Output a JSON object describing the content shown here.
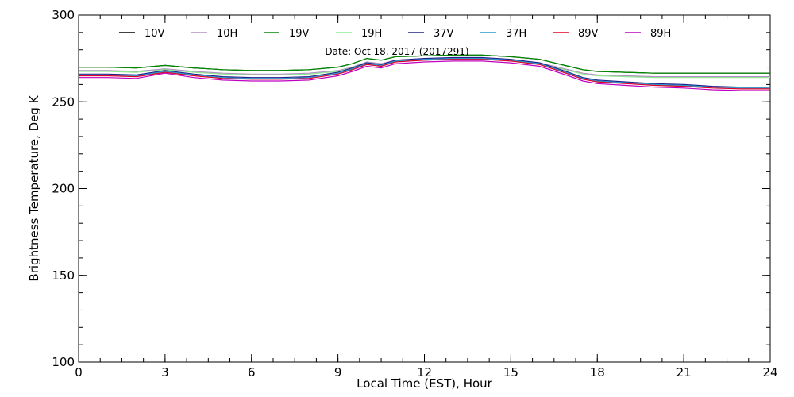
{
  "chart_data": {
    "type": "line",
    "title": "",
    "annotation": "Date: Oct 18, 2017 (2017291)",
    "xlabel": "Local Time (EST), Hour",
    "ylabel": "Brightness Temperature, Deg K",
    "xlim": [
      0,
      24
    ],
    "ylim": [
      100,
      300
    ],
    "xticks": [
      0,
      3,
      6,
      9,
      12,
      15,
      18,
      21,
      24
    ],
    "yticks": [
      100,
      150,
      200,
      250,
      300
    ],
    "grid": false,
    "legend_position": "top",
    "x": [
      0,
      1,
      2,
      3,
      4,
      5,
      6,
      7,
      8,
      9,
      9.5,
      10,
      10.5,
      11,
      12,
      13,
      14,
      15,
      16,
      17,
      17.5,
      18,
      19,
      20,
      21,
      22,
      23,
      24
    ],
    "series": [
      {
        "name": "10V",
        "color": "#000000",
        "values": [
          270,
          270,
          269.5,
          271,
          269.5,
          268.5,
          268,
          268,
          268.5,
          270,
          272,
          275,
          274,
          276,
          276.5,
          277,
          277,
          276,
          274.5,
          270.5,
          268.5,
          267.5,
          267,
          266.5,
          266.5,
          266.5,
          266.5,
          266.5
        ]
      },
      {
        "name": "10H",
        "color": "#b090c0",
        "values": [
          268,
          268,
          267.5,
          269,
          267.5,
          266.5,
          266,
          266,
          266.5,
          268,
          270,
          273,
          272,
          274,
          274.5,
          275,
          275,
          274,
          272.5,
          268.5,
          266.5,
          265.5,
          265,
          264.5,
          264.5,
          264.5,
          264.5,
          264.5
        ]
      },
      {
        "name": "19V",
        "color": "#008c00",
        "values": [
          270,
          270,
          269.5,
          271,
          269.5,
          268.5,
          268,
          268,
          268.5,
          270,
          272,
          275,
          274,
          276,
          276.5,
          277,
          277,
          276,
          274.5,
          270.5,
          268.5,
          267.5,
          267,
          266.5,
          266.5,
          266.5,
          266.5,
          266.5
        ]
      },
      {
        "name": "19H",
        "color": "#90e890",
        "values": [
          267.5,
          267.5,
          267,
          268.5,
          267,
          266,
          265.5,
          265.5,
          266,
          267.5,
          269.5,
          272.5,
          271.5,
          273.5,
          274,
          274.5,
          274.5,
          273.5,
          272,
          268,
          266,
          265,
          264.5,
          264,
          264,
          264,
          264,
          264
        ]
      },
      {
        "name": "37V",
        "color": "#20208c",
        "values": [
          266,
          266,
          265.5,
          268,
          266,
          264.5,
          264,
          264,
          264.5,
          267,
          269.5,
          272.5,
          271.5,
          274,
          275,
          275.5,
          275.5,
          274.5,
          272.5,
          267,
          264,
          262.5,
          261.5,
          260.5,
          260,
          259,
          258.5,
          258.5
        ]
      },
      {
        "name": "37H",
        "color": "#2898c8",
        "values": [
          265.5,
          265.5,
          265,
          267.5,
          265.5,
          264,
          263.5,
          263.5,
          264,
          266.5,
          269,
          272,
          271,
          273.5,
          274.5,
          275,
          275,
          274,
          272,
          266.5,
          263.5,
          262,
          261,
          260,
          259.5,
          258.5,
          258,
          258
        ]
      },
      {
        "name": "89V",
        "color": "#e0002a",
        "values": [
          265,
          265,
          264.5,
          267,
          265,
          263.5,
          263,
          263,
          263.5,
          266,
          268.5,
          271.5,
          270.5,
          273,
          274,
          274.5,
          274.5,
          273.5,
          271.5,
          266,
          263,
          261.5,
          260.5,
          259.5,
          259,
          258,
          257.5,
          257.5
        ]
      },
      {
        "name": "89H",
        "color": "#c000c0",
        "values": [
          264,
          264,
          263.5,
          266.5,
          264,
          262.5,
          262,
          262,
          262.5,
          265,
          267.5,
          270.5,
          269.5,
          272,
          273,
          273.5,
          273.5,
          272.5,
          270.5,
          265,
          262,
          260.5,
          259.5,
          258.5,
          258,
          257,
          256.5,
          256.5
        ]
      }
    ]
  }
}
